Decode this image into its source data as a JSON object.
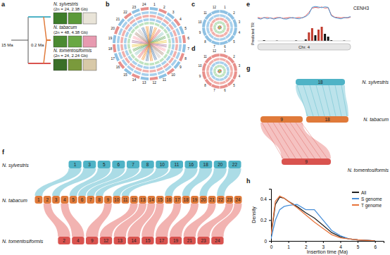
{
  "panel_labels": [
    "a",
    "b",
    "c",
    "d",
    "e",
    "f",
    "g",
    "h"
  ],
  "phylogeny": {
    "species": [
      {
        "name": "N. sylvestris",
        "info": "(2n = 24, 2.38 Gb)"
      },
      {
        "name": "N. tabacum",
        "info": "(2n = 48, 4.38 Gb)"
      },
      {
        "name": "N. tomentosiformis",
        "info": "(2n = 24, 2.24 Gb)"
      }
    ],
    "times": [
      "15 Ma",
      "0.2 Ma"
    ]
  },
  "circos": {
    "b": [
      "1",
      "2",
      "3",
      "4",
      "5",
      "6",
      "7",
      "8",
      "9",
      "10",
      "11",
      "12",
      "13",
      "14",
      "15",
      "16",
      "17",
      "18",
      "19",
      "20",
      "21",
      "22",
      "23",
      "24"
    ],
    "c": [
      "1",
      "2",
      "3",
      "4",
      "5",
      "6",
      "7",
      "8",
      "9",
      "10",
      "11",
      "12"
    ],
    "d": [
      "1",
      "2",
      "3",
      "4",
      "5",
      "6",
      "7",
      "8",
      "9",
      "10",
      "11",
      "12"
    ]
  },
  "track_e": {
    "signal_label": "CENH3",
    "tr_label": "Predicted TR",
    "chr_label": "Chr. 4",
    "cenh3_blue": [
      0.25,
      0.2,
      0.3,
      0.22,
      0.28,
      0.2,
      0.25,
      0.3,
      0.22,
      0.2,
      0.26,
      0.3,
      0.24,
      0.22,
      0.3,
      0.35,
      0.5,
      0.9,
      0.95,
      0.92,
      0.88,
      0.93,
      0.9,
      0.4,
      0.3,
      0.25,
      0.22,
      0.28,
      0.3,
      0.35
    ],
    "cenh3_red": [
      0.3,
      0.25,
      0.28,
      0.3,
      0.26,
      0.24,
      0.3,
      0.28,
      0.25,
      0.27,
      0.3,
      0.26,
      0.28,
      0.3,
      0.27,
      0.4,
      0.6,
      0.85,
      0.9,
      0.87,
      0.92,
      0.86,
      0.88,
      0.45,
      0.32,
      0.3,
      0.28,
      0.3,
      0.27,
      0.32
    ],
    "tr": [
      0,
      0,
      0.05,
      0,
      0,
      0,
      0.02,
      0,
      0,
      0,
      0,
      0,
      0.03,
      0,
      0,
      0.1,
      0.6,
      0.9,
      0.4,
      0.8,
      1,
      0.5,
      0.3,
      0.05,
      0,
      0,
      0,
      0.02,
      0,
      0
    ]
  },
  "synteny_f": {
    "rows": [
      {
        "name": "N. sylvestris",
        "chromosomes": [
          "1",
          "3",
          "5",
          "6",
          "7",
          "8",
          "10",
          "11",
          "16",
          "18",
          "20",
          "22"
        ]
      },
      {
        "name": "N. tabacum",
        "chromosomes": [
          "1",
          "2",
          "3",
          "4",
          "5",
          "6",
          "7",
          "8",
          "9",
          "10",
          "11",
          "12",
          "13",
          "14",
          "15",
          "16",
          "17",
          "18",
          "19",
          "20",
          "21",
          "22",
          "23",
          "24"
        ]
      },
      {
        "name": "N. tomentosiformis",
        "chromosomes": [
          "2",
          "4",
          "9",
          "12",
          "13",
          "14",
          "15",
          "17",
          "19",
          "21",
          "23",
          "24"
        ]
      }
    ]
  },
  "synteny_g": {
    "rows": [
      {
        "name": "N. sylvestris",
        "chromosomes": [
          "18"
        ]
      },
      {
        "name": "N. tabacum",
        "chromosomes": [
          "9",
          "18"
        ]
      },
      {
        "name": "N. tomentosiformis",
        "chromosomes": [
          "9"
        ]
      }
    ]
  },
  "chart_data": {
    "type": "line",
    "x_label": "Insertion time (Ma)",
    "y_label": "Density",
    "x": [
      0,
      0.25,
      0.5,
      0.75,
      1,
      1.5,
      2,
      2.5,
      3,
      3.5,
      4,
      4.5,
      5,
      5.5,
      6
    ],
    "series": [
      {
        "name": "All",
        "color": "#222222",
        "values": [
          0.05,
          0.35,
          0.42,
          0.41,
          0.38,
          0.33,
          0.27,
          0.22,
          0.15,
          0.08,
          0.04,
          0.02,
          0.01,
          0.005,
          0
        ]
      },
      {
        "name": "S genome",
        "color": "#4a90d9",
        "values": [
          0.02,
          0.2,
          0.3,
          0.33,
          0.34,
          0.35,
          0.3,
          0.3,
          0.2,
          0.1,
          0.05,
          0.02,
          0.01,
          0.005,
          0
        ]
      },
      {
        "name": "T genome",
        "color": "#e8743b",
        "values": [
          0.06,
          0.38,
          0.43,
          0.41,
          0.38,
          0.32,
          0.25,
          0.18,
          0.12,
          0.06,
          0.03,
          0.02,
          0.01,
          0.005,
          0
        ]
      }
    ],
    "xlim": [
      0,
      6.5
    ],
    "xticks": [
      0,
      1,
      2,
      3,
      4,
      5,
      6
    ],
    "ylim": [
      0,
      0.5
    ],
    "yticks": [
      0,
      0.2,
      0.4
    ],
    "legend": "upper right"
  }
}
